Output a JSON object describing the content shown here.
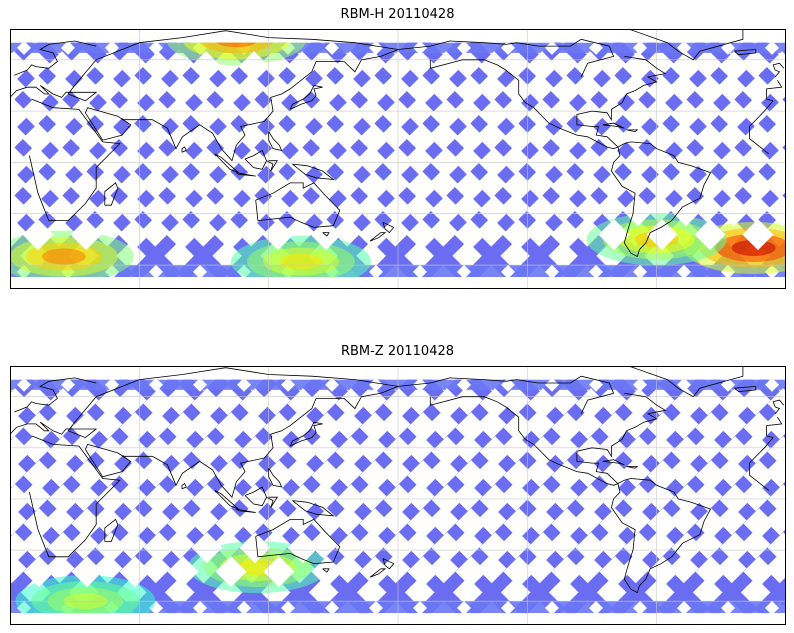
{
  "chart_data": [
    {
      "type": "heatmap",
      "title": "RBM-H 20110428",
      "xlabel": "",
      "ylabel": "",
      "grid": true,
      "colormap": "jet",
      "background": "#ffffff",
      "coastline_color": "#000000",
      "track_base_color": "#6a6cf2",
      "hot_regions": [
        {
          "lon": 105,
          "lat": 72,
          "level": 0.7
        },
        {
          "lon": 25,
          "lat": -55,
          "level": 0.65
        },
        {
          "lon": 135,
          "lat": -58,
          "level": 0.5
        },
        {
          "lon": -15,
          "lat": -50,
          "level": 0.9
        },
        {
          "lon": -60,
          "lat": -45,
          "level": 0.55
        }
      ]
    },
    {
      "type": "heatmap",
      "title": "RBM-Z 20110428",
      "xlabel": "",
      "ylabel": "",
      "grid": true,
      "colormap": "jet",
      "background": "#ffffff",
      "coastline_color": "#000000",
      "track_base_color": "#6a6cf2",
      "hot_regions": [
        {
          "lon": 115,
          "lat": -40,
          "level": 0.5
        },
        {
          "lon": 35,
          "lat": -60,
          "level": 0.4
        }
      ]
    }
  ]
}
